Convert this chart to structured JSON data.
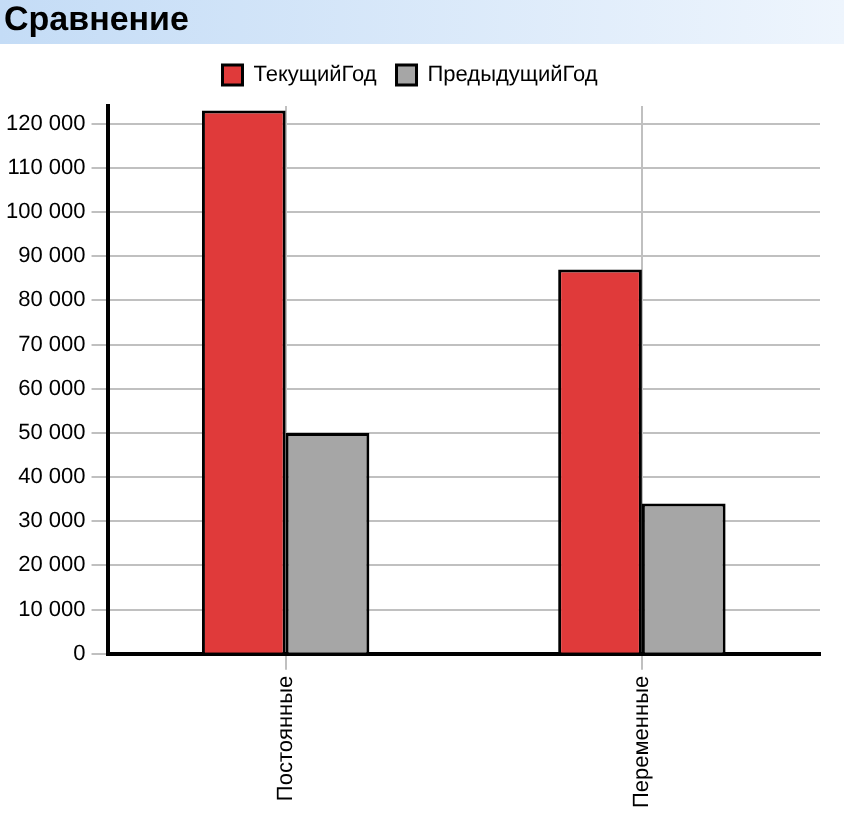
{
  "chart_data": {
    "type": "bar",
    "title": "Сравнение",
    "categories": [
      "Постоянные",
      "Переменные"
    ],
    "series": [
      {
        "name": "ТекущийГод",
        "color": "#e03a3a",
        "values": [
          123000,
          87000
        ]
      },
      {
        "name": "ПредыдущийГод",
        "color": "#a6a6a6",
        "values": [
          50000,
          34000
        ]
      }
    ],
    "ylim": [
      0,
      124000
    ],
    "yticks": [
      {
        "value": 0,
        "label": "0"
      },
      {
        "value": 10000,
        "label": "10 000"
      },
      {
        "value": 20000,
        "label": "20 000"
      },
      {
        "value": 30000,
        "label": "30 000"
      },
      {
        "value": 40000,
        "label": "40 000"
      },
      {
        "value": 50000,
        "label": "50 000"
      },
      {
        "value": 60000,
        "label": "60 000"
      },
      {
        "value": 70000,
        "label": "70 000"
      },
      {
        "value": 80000,
        "label": "80 000"
      },
      {
        "value": 90000,
        "label": "90 000"
      },
      {
        "value": 100000,
        "label": "100 000"
      },
      {
        "value": 110000,
        "label": "110 000"
      },
      {
        "value": 120000,
        "label": "120 000"
      }
    ],
    "grid": true,
    "legend": "top"
  }
}
